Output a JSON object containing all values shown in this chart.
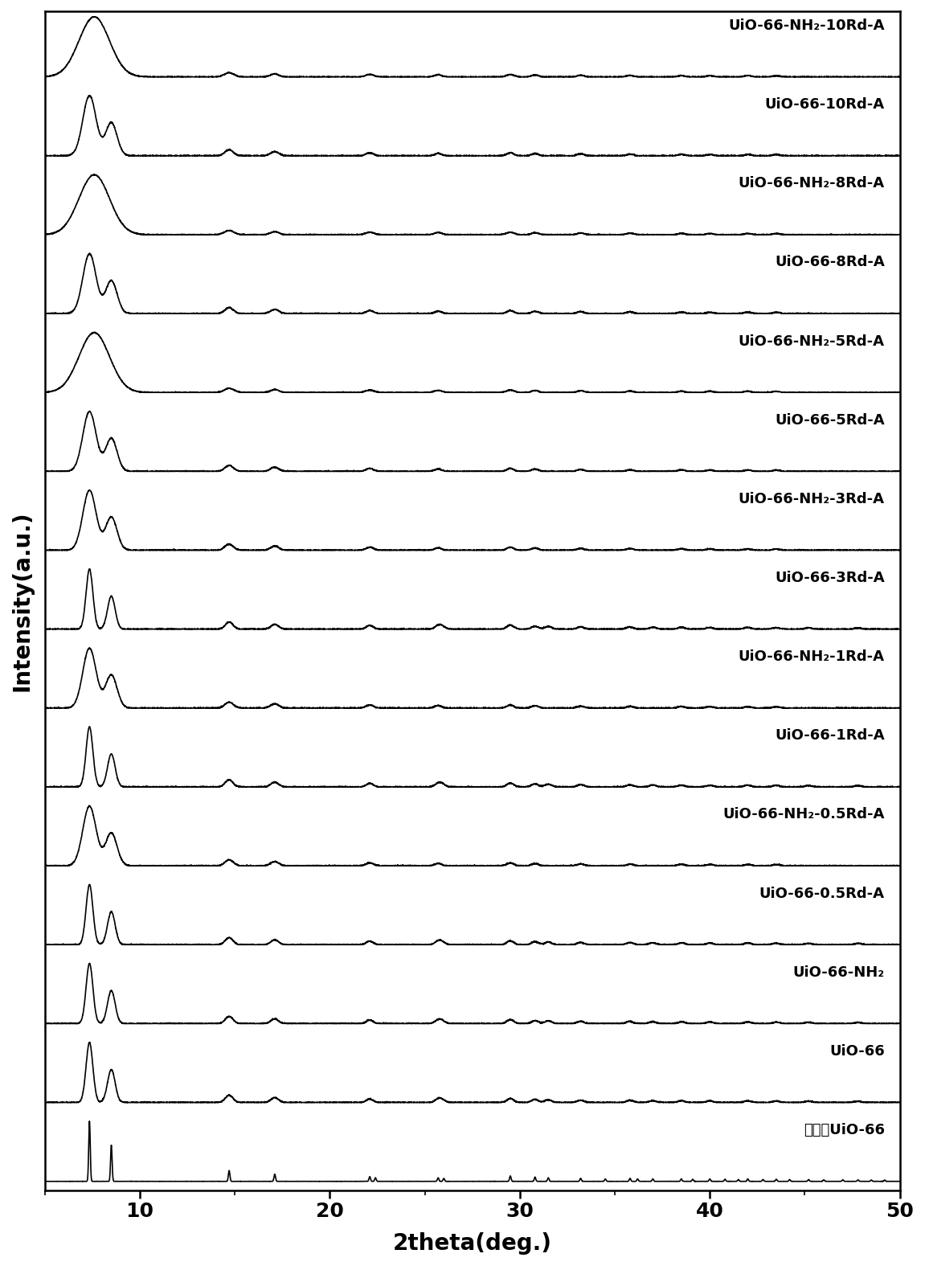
{
  "labels": [
    "模拟的UiO-66",
    "UiO-66",
    "UiO-66-NH₂",
    "UiO-66-0.5Rd-A",
    "UiO-66-NH₂-0.5Rd-A",
    "UiO-66-1Rd-A",
    "UiO-66-NH₂-1Rd-A",
    "UiO-66-3Rd-A",
    "UiO-66-NH₂-3Rd-A",
    "UiO-66-5Rd-A",
    "UiO-66-NH₂-5Rd-A",
    "UiO-66-8Rd-A",
    "UiO-66-NH₂-8Rd-A",
    "UiO-66-10Rd-A",
    "UiO-66-NH₂-10Rd-A"
  ],
  "x_min": 5,
  "x_max": 50,
  "xlabel": "2theta(deg.)",
  "ylabel": "Intensity(a.u.)",
  "background_color": "#ffffff",
  "line_color": "#000000",
  "label_fontsize": 13,
  "axis_label_fontsize": 20,
  "tick_fontsize": 18,
  "figsize": [
    11.51,
    15.75
  ],
  "dpi": 100
}
